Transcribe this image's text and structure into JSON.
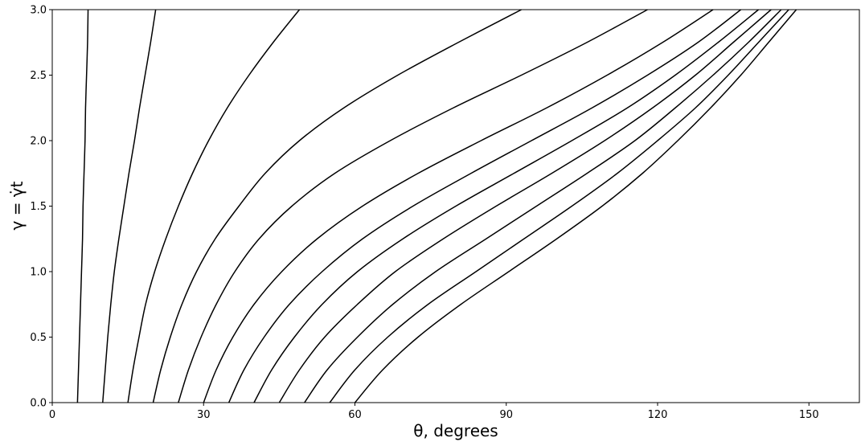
{
  "chart_data": {
    "type": "line",
    "title": "",
    "xlabel": "θ, degrees",
    "ylabel": "γ = γ̇t",
    "xlim": [
      0,
      160
    ],
    "ylim": [
      0,
      3.0
    ],
    "xticks": [
      "0",
      "30",
      "60",
      "90",
      "120",
      "150"
    ],
    "xtick_values": [
      0,
      30,
      60,
      90,
      120,
      150
    ],
    "yticks": [
      "0.0",
      "0.5",
      "1.0",
      "1.5",
      "2.0",
      "2.5",
      "3.0"
    ],
    "ytick_values": [
      0,
      0.5,
      1.0,
      1.5,
      2.0,
      2.5,
      3.0
    ],
    "grid": false,
    "line_color": "#000000",
    "y_samples": [
      0,
      0.25,
      0.5,
      0.75,
      1.0,
      1.25,
      1.5,
      1.75,
      2.0,
      2.25,
      2.5,
      2.75,
      3.0
    ],
    "series": [
      {
        "x": [
          5.0,
          5.2,
          5.4,
          5.6,
          5.8,
          6.0,
          6.1,
          6.3,
          6.5,
          6.6,
          6.8,
          7.0,
          7.1
        ]
      },
      {
        "x": [
          10.0,
          10.5,
          11.0,
          11.6,
          12.3,
          13.2,
          14.2,
          15.2,
          16.3,
          17.3,
          18.4,
          19.5,
          20.5
        ]
      },
      {
        "x": [
          15.0,
          16.0,
          17.2,
          18.5,
          20.3,
          22.5,
          25.0,
          27.8,
          31.0,
          34.7,
          39.0,
          43.8,
          49.0
        ]
      },
      {
        "x": [
          20.0,
          21.5,
          23.4,
          25.7,
          28.6,
          32.3,
          37.0,
          42.2,
          49.0,
          57.8,
          68.5,
          80.5,
          93.0
        ]
      },
      {
        "x": [
          25.0,
          27.0,
          29.5,
          32.5,
          36.2,
          41.0,
          47.5,
          56.0,
          67.0,
          79.5,
          93.0,
          106.0,
          118.0
        ]
      },
      {
        "x": [
          30.0,
          32.5,
          35.8,
          40.0,
          45.5,
          52.5,
          61.5,
          72.5,
          85.0,
          98.0,
          110.0,
          121.0,
          131.0
        ]
      },
      {
        "x": [
          35.0,
          38.0,
          42.0,
          47.0,
          53.5,
          61.5,
          71.5,
          83.0,
          95.0,
          107.0,
          118.0,
          128.0,
          136.5
        ]
      },
      {
        "x": [
          40.0,
          43.5,
          48.0,
          53.5,
          60.5,
          69.5,
          80.0,
          91.5,
          103.0,
          114.0,
          123.5,
          132.0,
          140.0
        ]
      },
      {
        "x": [
          45.0,
          49.0,
          54.0,
          60.5,
          68.0,
          77.5,
          88.0,
          99.0,
          109.5,
          119.0,
          127.5,
          135.0,
          142.5
        ]
      },
      {
        "x": [
          50.0,
          54.5,
          60.5,
          67.5,
          76.0,
          86.0,
          96.0,
          106.0,
          115.5,
          123.5,
          131.0,
          138.0,
          144.5
        ]
      },
      {
        "x": [
          55.0,
          60.0,
          66.5,
          74.5,
          84.0,
          93.5,
          103.0,
          112.0,
          120.0,
          127.5,
          134.0,
          140.0,
          146.0
        ]
      },
      {
        "x": [
          60.0,
          65.5,
          72.5,
          81.0,
          90.5,
          100.0,
          109.0,
          117.0,
          124.0,
          130.5,
          136.5,
          142.0,
          147.5
        ]
      }
    ]
  }
}
